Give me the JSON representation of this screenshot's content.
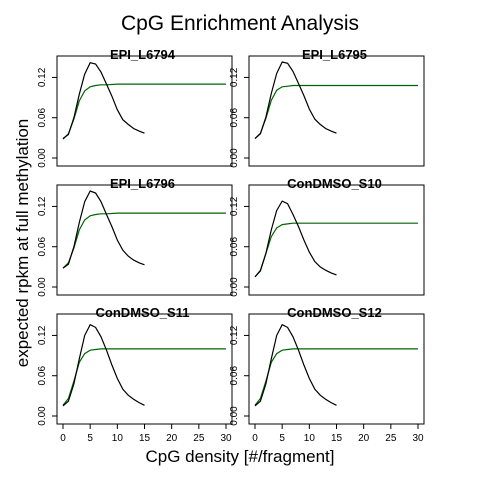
{
  "chart_data": {
    "type": "line",
    "title": "CpG Enrichment Analysis",
    "xlabel": "CpG density [#/fragment]",
    "ylabel": "expected rpkm at full methylation",
    "xlim": [
      0,
      30
    ],
    "ylim": [
      0,
      0.14
    ],
    "x_ticks": [
      "0",
      "5",
      "10",
      "15",
      "20",
      "25",
      "30"
    ],
    "y_ticks": [
      "0.00",
      "0.06",
      "0.12"
    ],
    "grid": false,
    "layout": "3 rows x 2 columns",
    "colors": {
      "peak_curve": "#000000",
      "fit_curve": "#006400"
    },
    "panels": [
      {
        "title": "EPI_L6794",
        "peak_x": [
          0,
          1,
          2,
          3,
          4,
          5,
          6,
          7,
          8,
          9,
          10,
          11,
          12,
          13,
          14,
          15
        ],
        "peak_y": [
          0.029,
          0.035,
          0.06,
          0.095,
          0.125,
          0.142,
          0.14,
          0.128,
          0.11,
          0.092,
          0.072,
          0.057,
          0.05,
          0.044,
          0.04,
          0.037
        ],
        "fit_x": [
          0,
          1,
          2,
          3,
          4,
          5,
          6,
          7,
          8,
          10,
          12,
          15,
          20,
          25,
          30
        ],
        "fit_y": [
          0.028,
          0.036,
          0.058,
          0.085,
          0.1,
          0.106,
          0.108,
          0.109,
          0.109,
          0.11,
          0.11,
          0.11,
          0.11,
          0.11,
          0.11
        ]
      },
      {
        "title": "EPI_L6795",
        "peak_x": [
          0,
          1,
          2,
          3,
          4,
          5,
          6,
          7,
          8,
          9,
          10,
          11,
          12,
          13,
          14,
          15
        ],
        "peak_y": [
          0.029,
          0.036,
          0.061,
          0.096,
          0.126,
          0.143,
          0.141,
          0.129,
          0.111,
          0.093,
          0.073,
          0.058,
          0.05,
          0.044,
          0.04,
          0.037
        ],
        "fit_x": [
          0,
          1,
          2,
          3,
          4,
          5,
          6,
          7,
          8,
          10,
          12,
          15,
          20,
          25,
          30
        ],
        "fit_y": [
          0.029,
          0.037,
          0.059,
          0.086,
          0.101,
          0.106,
          0.107,
          0.108,
          0.108,
          0.108,
          0.108,
          0.108,
          0.108,
          0.108,
          0.108
        ]
      },
      {
        "title": "EPI_L6796",
        "peak_x": [
          0,
          1,
          2,
          3,
          4,
          5,
          6,
          7,
          8,
          9,
          10,
          11,
          12,
          13,
          14,
          15
        ],
        "peak_y": [
          0.028,
          0.034,
          0.06,
          0.096,
          0.127,
          0.143,
          0.14,
          0.127,
          0.108,
          0.09,
          0.07,
          0.055,
          0.046,
          0.04,
          0.036,
          0.033
        ],
        "fit_x": [
          0,
          1,
          2,
          3,
          4,
          5,
          6,
          7,
          8,
          10,
          12,
          15,
          20,
          25,
          30
        ],
        "fit_y": [
          0.028,
          0.036,
          0.058,
          0.085,
          0.1,
          0.106,
          0.108,
          0.109,
          0.109,
          0.11,
          0.11,
          0.11,
          0.11,
          0.11,
          0.11
        ]
      },
      {
        "title": "ConDMSO_S10",
        "peak_x": [
          0,
          1,
          2,
          3,
          4,
          5,
          6,
          7,
          8,
          9,
          10,
          11,
          12,
          13,
          14,
          15
        ],
        "peak_y": [
          0.015,
          0.024,
          0.05,
          0.085,
          0.114,
          0.128,
          0.124,
          0.108,
          0.09,
          0.07,
          0.052,
          0.038,
          0.03,
          0.025,
          0.021,
          0.018
        ],
        "fit_x": [
          0,
          1,
          2,
          3,
          4,
          5,
          6,
          7,
          8,
          10,
          12,
          15,
          20,
          25,
          30
        ],
        "fit_y": [
          0.015,
          0.025,
          0.05,
          0.075,
          0.088,
          0.093,
          0.094,
          0.095,
          0.095,
          0.095,
          0.095,
          0.095,
          0.095,
          0.095,
          0.095
        ]
      },
      {
        "title": "ConDMSO_S11",
        "peak_x": [
          0,
          1,
          2,
          3,
          4,
          5,
          6,
          7,
          8,
          9,
          10,
          11,
          12,
          13,
          14,
          15
        ],
        "peak_y": [
          0.015,
          0.022,
          0.048,
          0.085,
          0.12,
          0.136,
          0.132,
          0.118,
          0.098,
          0.076,
          0.056,
          0.04,
          0.031,
          0.025,
          0.02,
          0.016
        ],
        "fit_x": [
          0,
          1,
          2,
          3,
          4,
          5,
          6,
          7,
          8,
          10,
          12,
          15,
          20,
          25,
          30
        ],
        "fit_y": [
          0.016,
          0.026,
          0.052,
          0.08,
          0.093,
          0.098,
          0.099,
          0.1,
          0.1,
          0.1,
          0.1,
          0.1,
          0.1,
          0.1,
          0.1
        ]
      },
      {
        "title": "ConDMSO_S12",
        "peak_x": [
          0,
          1,
          2,
          3,
          4,
          5,
          6,
          7,
          8,
          9,
          10,
          11,
          12,
          13,
          14,
          15
        ],
        "peak_y": [
          0.015,
          0.022,
          0.048,
          0.085,
          0.12,
          0.136,
          0.132,
          0.118,
          0.098,
          0.076,
          0.056,
          0.04,
          0.031,
          0.025,
          0.02,
          0.016
        ],
        "fit_x": [
          0,
          1,
          2,
          3,
          4,
          5,
          6,
          7,
          8,
          10,
          12,
          15,
          20,
          25,
          30
        ],
        "fit_y": [
          0.016,
          0.026,
          0.052,
          0.08,
          0.093,
          0.098,
          0.099,
          0.1,
          0.1,
          0.1,
          0.1,
          0.1,
          0.1,
          0.1,
          0.1
        ]
      }
    ]
  }
}
